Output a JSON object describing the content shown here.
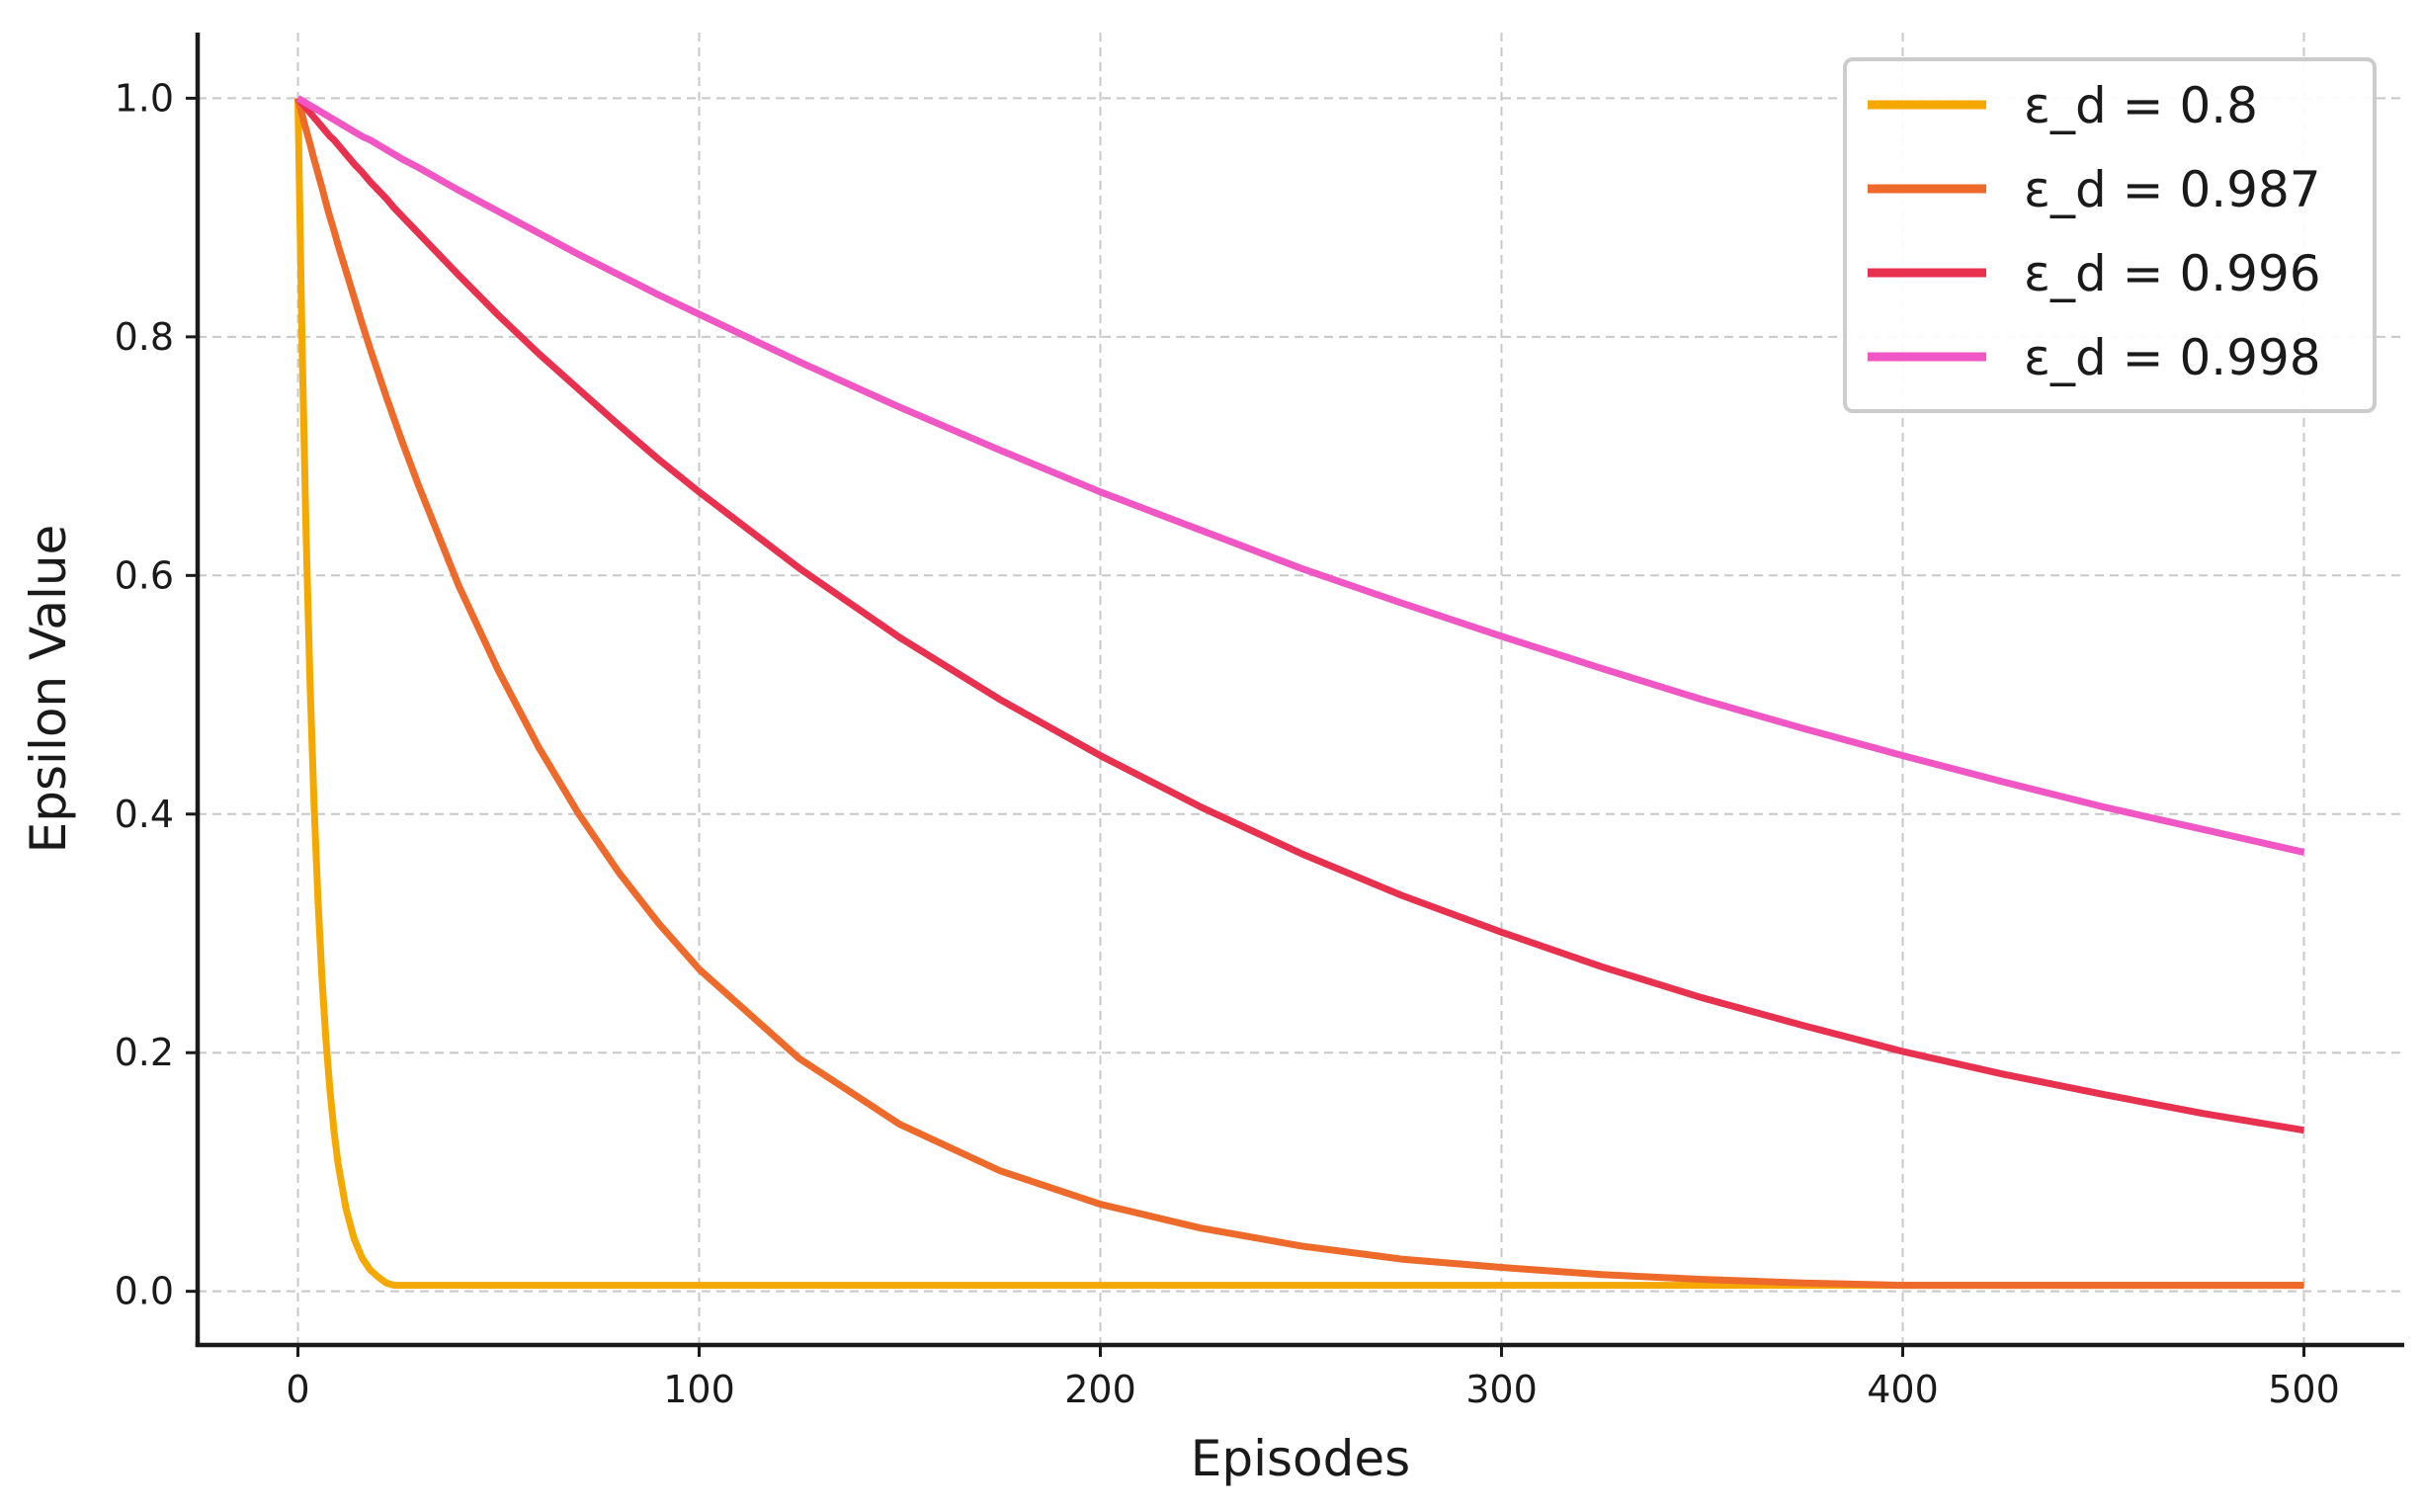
{
  "chart_data": {
    "type": "line",
    "xlabel": "Episodes",
    "ylabel": "Epsilon Value",
    "xlim": [
      -25,
      525
    ],
    "ylim": [
      -0.045,
      1.055
    ],
    "xticks": [
      0,
      100,
      200,
      300,
      400,
      500
    ],
    "yticks": [
      0.0,
      0.2,
      0.4,
      0.6,
      0.8,
      1.0
    ],
    "xtick_labels": [
      "0",
      "100",
      "200",
      "300",
      "400",
      "500"
    ],
    "ytick_labels": [
      "0.0",
      "0.2",
      "0.4",
      "0.6",
      "0.8",
      "1.0"
    ],
    "grid": true,
    "legend_position": "top-right",
    "x": [
      0,
      1,
      2,
      3,
      4,
      5,
      6,
      7,
      8,
      9,
      10,
      12,
      14,
      16,
      18,
      20,
      22,
      24,
      26,
      30,
      40,
      50,
      60,
      70,
      80,
      90,
      100,
      125,
      150,
      175,
      200,
      225,
      250,
      275,
      300,
      325,
      350,
      375,
      400,
      425,
      450,
      475,
      500
    ],
    "series": [
      {
        "name": "ε_d = 0.8",
        "color": "#F5A800",
        "values": [
          1.0,
          0.8,
          0.64,
          0.512,
          0.41,
          0.328,
          0.262,
          0.21,
          0.168,
          0.134,
          0.107,
          0.069,
          0.044,
          0.028,
          0.018,
          0.012,
          0.007,
          0.005,
          0.005,
          0.005,
          0.005,
          0.005,
          0.005,
          0.005,
          0.005,
          0.005,
          0.005,
          0.005,
          0.005,
          0.005,
          0.005,
          0.005,
          0.005,
          0.005,
          0.005,
          0.005,
          0.005,
          0.005,
          0.005,
          0.005,
          0.005,
          0.005,
          0.005
        ]
      },
      {
        "name": "ε_d = 0.987",
        "color": "#EE6A2A",
        "values": [
          1.0,
          0.987,
          0.974,
          0.962,
          0.949,
          0.937,
          0.925,
          0.912,
          0.9,
          0.889,
          0.877,
          0.855,
          0.833,
          0.811,
          0.79,
          0.77,
          0.75,
          0.731,
          0.712,
          0.676,
          0.592,
          0.52,
          0.456,
          0.4,
          0.351,
          0.308,
          0.27,
          0.195,
          0.14,
          0.101,
          0.073,
          0.053,
          0.038,
          0.027,
          0.02,
          0.014,
          0.01,
          0.007,
          0.005,
          0.005,
          0.005,
          0.005,
          0.005
        ]
      },
      {
        "name": "ε_d = 0.996",
        "color": "#E8304F",
        "values": [
          1.0,
          0.996,
          0.992,
          0.988,
          0.984,
          0.98,
          0.976,
          0.972,
          0.968,
          0.965,
          0.961,
          0.953,
          0.945,
          0.938,
          0.93,
          0.923,
          0.916,
          0.908,
          0.901,
          0.887,
          0.852,
          0.818,
          0.786,
          0.756,
          0.726,
          0.697,
          0.67,
          0.606,
          0.548,
          0.496,
          0.449,
          0.406,
          0.367,
          0.332,
          0.301,
          0.272,
          0.246,
          0.223,
          0.201,
          0.182,
          0.165,
          0.149,
          0.135
        ]
      },
      {
        "name": "ε_d = 0.998",
        "color": "#F056C4",
        "values": [
          1.0,
          0.998,
          0.996,
          0.994,
          0.992,
          0.99,
          0.988,
          0.986,
          0.984,
          0.982,
          0.98,
          0.976,
          0.972,
          0.968,
          0.965,
          0.961,
          0.957,
          0.953,
          0.949,
          0.942,
          0.923,
          0.905,
          0.887,
          0.869,
          0.852,
          0.835,
          0.819,
          0.779,
          0.741,
          0.705,
          0.67,
          0.638,
          0.606,
          0.577,
          0.549,
          0.522,
          0.496,
          0.472,
          0.449,
          0.427,
          0.406,
          0.387,
          0.368
        ]
      }
    ]
  }
}
